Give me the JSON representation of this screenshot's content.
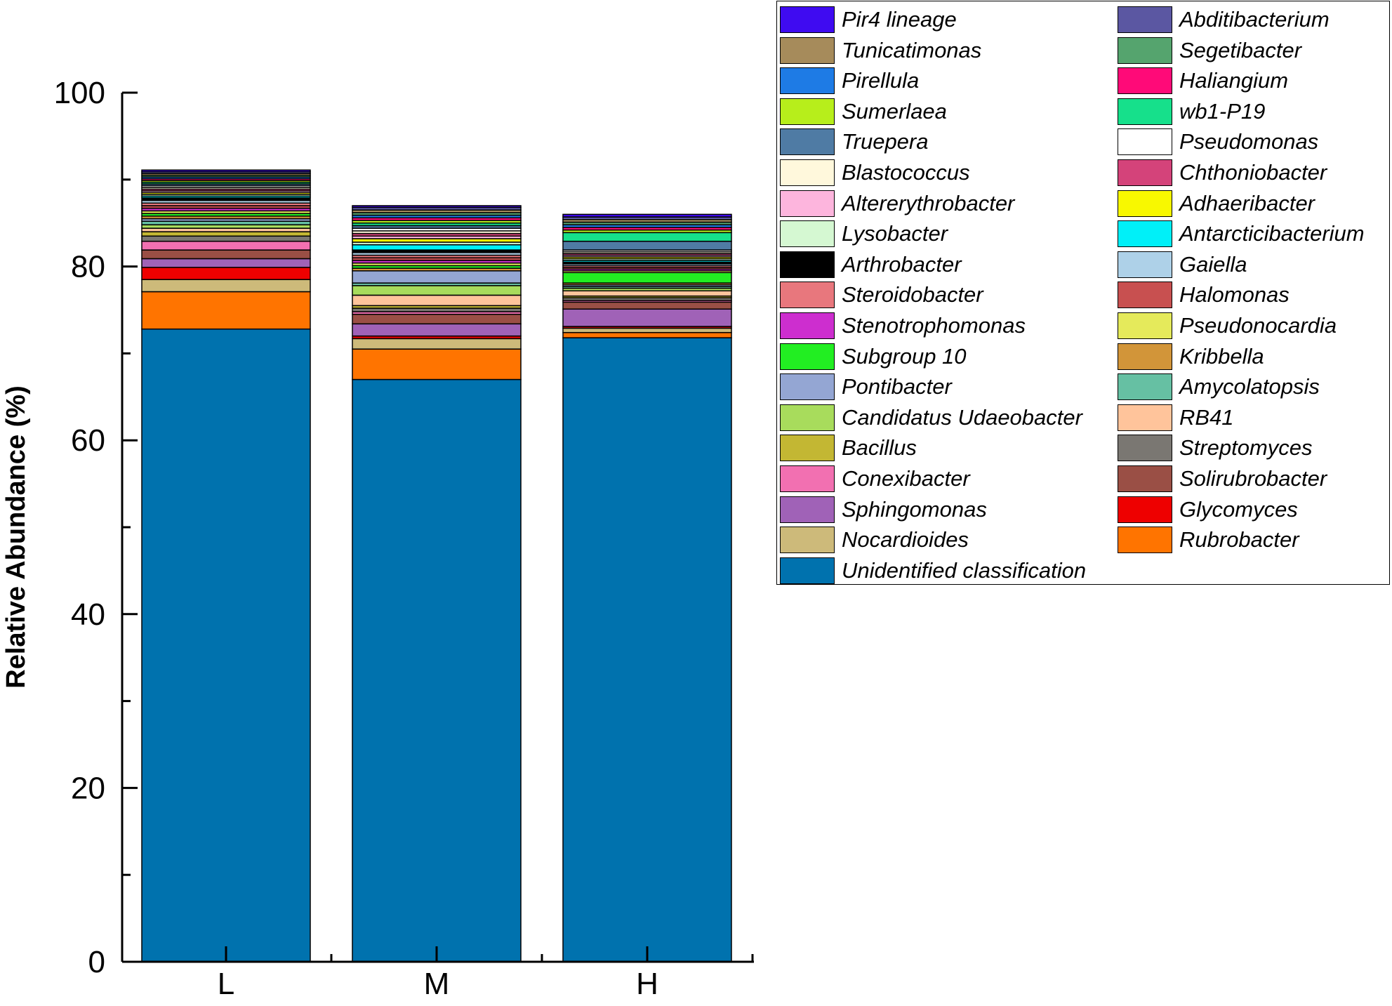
{
  "chart_data": {
    "type": "bar",
    "stacked": true,
    "title": "",
    "xlabel": "",
    "ylabel": "Relative Abundance (%)",
    "ylim": [
      0,
      100
    ],
    "yticks": [
      "0",
      "20",
      "40",
      "60",
      "80",
      "100"
    ],
    "categories": [
      "L",
      "M",
      "H"
    ],
    "legend_position": "right",
    "series": [
      {
        "name": "Unidentified classification",
        "color": "#0072AE",
        "values": [
          72.8,
          67.0,
          71.8
        ]
      },
      {
        "name": "Rubrobacter",
        "color": "#FF7400",
        "values": [
          4.3,
          3.5,
          0.6
        ]
      },
      {
        "name": "Nocardioides",
        "color": "#CDBA7A",
        "values": [
          1.4,
          1.2,
          0.5
        ]
      },
      {
        "name": "Glycomyces",
        "color": "#EE0000",
        "values": [
          1.4,
          0.3,
          0.2
        ]
      },
      {
        "name": "Sphingomonas",
        "color": "#A062B7",
        "values": [
          1.0,
          1.4,
          2.0
        ]
      },
      {
        "name": "Solirubrobacter",
        "color": "#9A4F45",
        "values": [
          1.0,
          1.1,
          0.8
        ]
      },
      {
        "name": "Conexibacter",
        "color": "#F270B1",
        "values": [
          1.0,
          0.3,
          0.2
        ]
      },
      {
        "name": "Streptomyces",
        "color": "#7A7772",
        "values": [
          0.6,
          0.4,
          0.3
        ]
      },
      {
        "name": "Bacillus",
        "color": "#C3B733",
        "values": [
          0.5,
          0.3,
          0.2
        ]
      },
      {
        "name": "RB41",
        "color": "#FFC49B",
        "values": [
          0.4,
          1.2,
          0.6
        ]
      },
      {
        "name": "Candidatus Udaeobacter",
        "color": "#A8DC5C",
        "values": [
          0.4,
          1.1,
          0.3
        ]
      },
      {
        "name": "Amycolatopsis",
        "color": "#66C0A3",
        "values": [
          0.4,
          0.3,
          0.2
        ]
      },
      {
        "name": "Pontibacter",
        "color": "#94A6D3",
        "values": [
          0.3,
          1.4,
          0.2
        ]
      },
      {
        "name": "Kribbella",
        "color": "#D29539",
        "values": [
          0.3,
          0.3,
          0.2
        ]
      },
      {
        "name": "Subgroup 10",
        "color": "#22EE22",
        "values": [
          0.3,
          0.3,
          1.2
        ]
      },
      {
        "name": "Pseudonocardia",
        "color": "#E5EA5B",
        "values": [
          0.3,
          0.3,
          0.2
        ]
      },
      {
        "name": "Stenotrophomonas",
        "color": "#CD2ECF",
        "values": [
          0.3,
          0.3,
          0.2
        ]
      },
      {
        "name": "Halomonas",
        "color": "#C85050",
        "values": [
          0.3,
          0.3,
          0.2
        ]
      },
      {
        "name": "Steroidobacter",
        "color": "#E8777D",
        "values": [
          0.3,
          0.3,
          0.2
        ]
      },
      {
        "name": "Gaiella",
        "color": "#AED1E8",
        "values": [
          0.3,
          0.3,
          0.2
        ]
      },
      {
        "name": "Arthrobacter",
        "color": "#000000",
        "values": [
          0.3,
          0.3,
          0.2
        ]
      },
      {
        "name": "Antarcticibacterium",
        "color": "#00F0F8",
        "values": [
          0.2,
          0.6,
          0.2
        ]
      },
      {
        "name": "Lysobacter",
        "color": "#D5F8D2",
        "values": [
          0.2,
          0.3,
          0.2
        ]
      },
      {
        "name": "Adhaeribacter",
        "color": "#F8F800",
        "values": [
          0.2,
          0.4,
          0.2
        ]
      },
      {
        "name": "Altererythrobacter",
        "color": "#FDB5DD",
        "values": [
          0.2,
          0.3,
          0.2
        ]
      },
      {
        "name": "Chthoniobacter",
        "color": "#D4437A",
        "values": [
          0.2,
          0.3,
          0.2
        ]
      },
      {
        "name": "Blastococcus",
        "color": "#FFF8DC",
        "values": [
          0.2,
          0.3,
          0.2
        ]
      },
      {
        "name": "Pseudomonas",
        "color": "#FFFFFF",
        "values": [
          0.2,
          0.3,
          0.2
        ]
      },
      {
        "name": "Truepera",
        "color": "#4F7BA4",
        "values": [
          0.2,
          0.3,
          1.0
        ]
      },
      {
        "name": "wb1-P19",
        "color": "#16E08B",
        "values": [
          0.2,
          0.3,
          1.0
        ]
      },
      {
        "name": "Sumerlaea",
        "color": "#B7EE1B",
        "values": [
          0.2,
          0.3,
          0.3
        ]
      },
      {
        "name": "Haliangium",
        "color": "#FF0A78",
        "values": [
          0.2,
          0.3,
          0.3
        ]
      },
      {
        "name": "Pirellula",
        "color": "#1E7BE5",
        "values": [
          0.2,
          0.3,
          0.3
        ]
      },
      {
        "name": "Segetibacter",
        "color": "#55A46E",
        "values": [
          0.2,
          0.3,
          0.3
        ]
      },
      {
        "name": "Tunicatimonas",
        "color": "#A68B5B",
        "values": [
          0.2,
          0.3,
          0.3
        ]
      },
      {
        "name": "Abditibacterium",
        "color": "#5B57A2",
        "values": [
          0.2,
          0.3,
          0.3
        ]
      },
      {
        "name": "Pir4 lineage",
        "color": "#3F0BF1",
        "values": [
          0.2,
          0.2,
          0.3
        ]
      }
    ],
    "legend": [
      [
        "Pir4 lineage",
        "Tunicatimonas",
        "Pirellula",
        "Sumerlaea",
        "Truepera",
        "Blastococcus",
        "Altererythrobacter",
        "Lysobacter",
        "Arthrobacter",
        "Steroidobacter",
        "Stenotrophomonas",
        "Subgroup 10",
        "Pontibacter",
        "Candidatus Udaeobacter",
        "Bacillus",
        "Conexibacter",
        "Sphingomonas",
        "Nocardioides",
        "Unidentified classification"
      ],
      [
        "Abditibacterium",
        "Segetibacter",
        "Haliangium",
        "wb1-P19",
        "Pseudomonas",
        "Chthoniobacter",
        "Adhaeribacter",
        "Antarcticibacterium",
        "Gaiella",
        "Halomonas",
        "Pseudonocardia",
        "Kribbella",
        "Amycolatopsis",
        "RB41",
        "Streptomyces",
        "Solirubrobacter",
        "Glycomyces",
        "Rubrobacter"
      ]
    ]
  }
}
